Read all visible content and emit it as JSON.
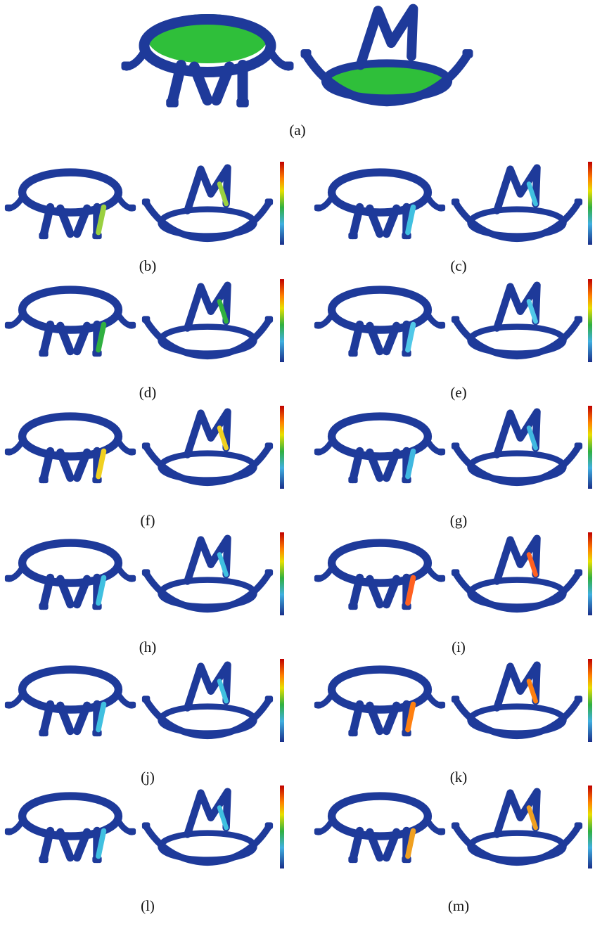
{
  "figure": {
    "panels": [
      {
        "label": "(a)"
      },
      {
        "label": "(b)"
      },
      {
        "label": "(c)"
      },
      {
        "label": "(d)"
      },
      {
        "label": "(e)"
      },
      {
        "label": "(f)"
      },
      {
        "label": "(g)"
      },
      {
        "label": "(h)"
      },
      {
        "label": "(i)"
      },
      {
        "label": "(j)"
      },
      {
        "label": "(k)"
      },
      {
        "label": "(l)"
      },
      {
        "label": "(m)"
      }
    ]
  }
}
